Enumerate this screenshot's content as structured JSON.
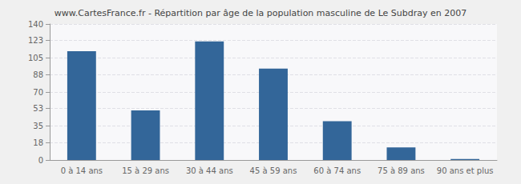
{
  "chart_data": {
    "type": "bar",
    "title": "www.CartesFrance.fr - Répartition par âge de la population masculine de Le Subdray en 2007",
    "categories": [
      "0 à 14 ans",
      "15 à 29 ans",
      "30 à 44 ans",
      "45 à 59 ans",
      "60 à 74 ans",
      "75 à 89 ans",
      "90 ans et plus"
    ],
    "values": [
      112,
      51,
      122,
      94,
      40,
      13,
      1
    ],
    "color": "#336699",
    "ylim": [
      0,
      140
    ],
    "yticks": [
      0,
      18,
      35,
      53,
      70,
      88,
      105,
      123,
      140
    ],
    "grid": true
  }
}
